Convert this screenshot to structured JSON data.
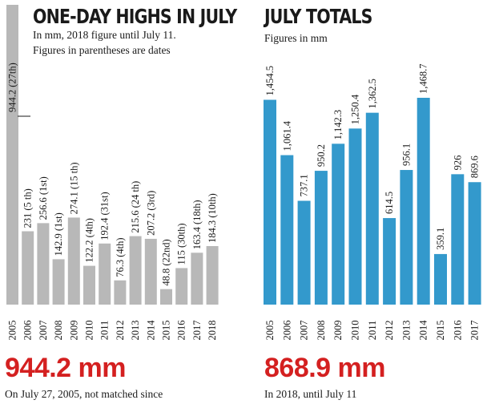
{
  "left_panel": {
    "title": "ONE-DAY HIGHS IN JULY",
    "subtitle_line1": "In mm, 2018 figure until July 11.",
    "subtitle_line2": "Figures in parentheses are dates",
    "highlight_value": "944.2 mm",
    "highlight_caption": "On July 27, 2005, not matched since"
  },
  "right_panel": {
    "title": "JULY TOTALS",
    "subtitle": "Figures in mm",
    "highlight_value": "868.9 mm",
    "highlight_caption": "In 2018, until July 11"
  },
  "colors": {
    "grey_bar": "#b8b8b8",
    "blue_bar": "#3399cc",
    "highlight_red": "#d42020"
  },
  "chart_data": [
    {
      "type": "bar",
      "title": "ONE-DAY HIGHS IN JULY",
      "categories": [
        "2005",
        "2006",
        "2007",
        "2008",
        "2009",
        "2010",
        "2011",
        "2012",
        "2013",
        "2014",
        "2015",
        "2016",
        "2017",
        "2018"
      ],
      "values": [
        944.2,
        231,
        256.6,
        142.9,
        274.1,
        122.2,
        192.4,
        76.3,
        215.6,
        207.2,
        48.8,
        115,
        163.4,
        184.3
      ],
      "labels": [
        "944.2 (27th)",
        "231 (5 th)",
        "256.6 (1st)",
        "142.9 (1st)",
        "274.1 (15 th)",
        "122.2 (4th)",
        "192.4 (31st)",
        "76.3 (4th)",
        "215.6 (24 th)",
        "207.2 (3rd)",
        "48.8 (22nd)",
        "115 (30th)",
        "163.4 (18th)",
        "184.3 (10th)"
      ],
      "ylim": [
        0,
        944.2
      ],
      "grid": false,
      "legend": "none"
    },
    {
      "type": "bar",
      "title": "JULY TOTALS",
      "categories": [
        "2005",
        "2006",
        "2007",
        "2008",
        "2009",
        "2010",
        "2011",
        "2012",
        "2013",
        "2014",
        "2015",
        "2016",
        "2017"
      ],
      "values": [
        1454.5,
        1061.4,
        737.1,
        950.2,
        1142.3,
        1250.4,
        1362.5,
        614.5,
        956.1,
        1468.7,
        359.1,
        926,
        869.6
      ],
      "labels": [
        "1,454.5",
        "1,061.4",
        "737.1",
        "950.2",
        "1,142.3",
        "1,250.4",
        "1,362.5",
        "614.5",
        "956.1",
        "1,468.7",
        "359.1",
        "926",
        "869.6"
      ],
      "ylim": [
        0,
        1468.7
      ],
      "grid": false,
      "legend": "none"
    }
  ]
}
